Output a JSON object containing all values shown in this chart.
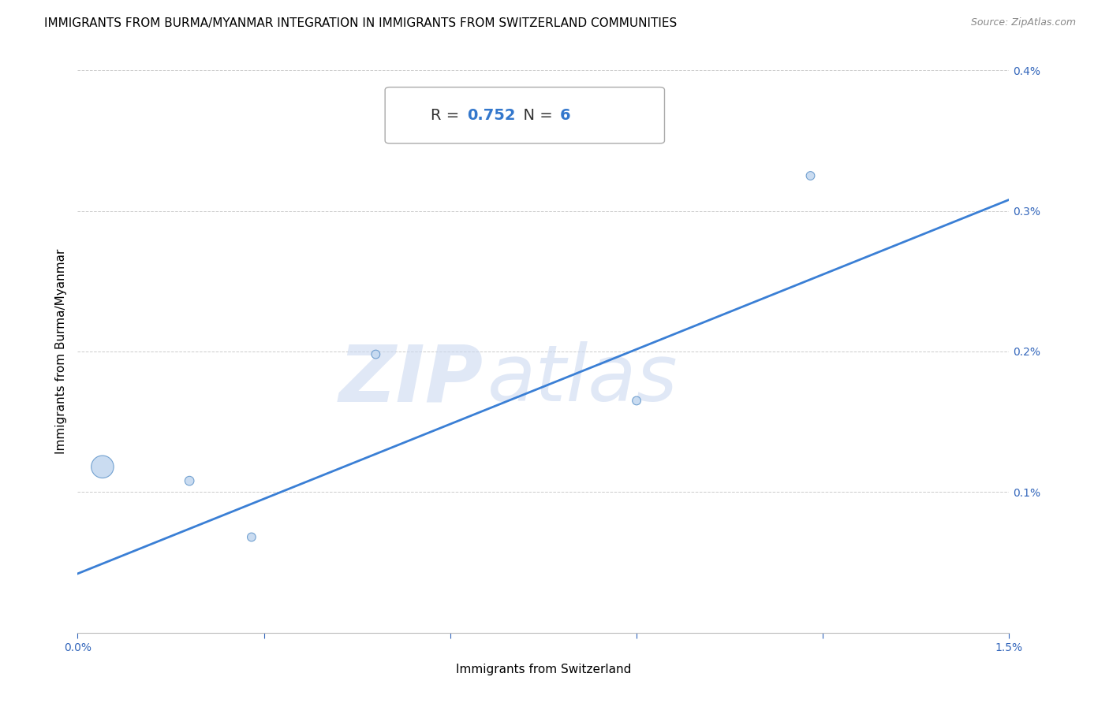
{
  "title": "IMMIGRANTS FROM BURMA/MYANMAR INTEGRATION IN IMMIGRANTS FROM SWITZERLAND COMMUNITIES",
  "source": "Source: ZipAtlas.com",
  "xlabel": "Immigrants from Switzerland",
  "ylabel": "Immigrants from Burma/Myanmar",
  "R": 0.752,
  "N": 6,
  "scatter_x": [
    0.0004,
    0.0018,
    0.0028,
    0.0048,
    0.009,
    0.0118
  ],
  "scatter_y": [
    0.00118,
    0.00108,
    0.00068,
    0.00198,
    0.00165,
    0.00325
  ],
  "scatter_sizes": [
    420,
    70,
    60,
    60,
    60,
    60
  ],
  "scatter_color": "#c5d9f0",
  "scatter_edge_color": "#6699cc",
  "line_color": "#3a7fd5",
  "line_x": [
    0.0,
    0.015
  ],
  "line_y": [
    0.00042,
    0.00308
  ],
  "xlim": [
    0.0,
    0.015
  ],
  "ylim": [
    0.0,
    0.004
  ],
  "xticks": [
    0.0,
    0.003,
    0.006,
    0.009,
    0.012,
    0.015
  ],
  "yticks": [
    0.0,
    0.001,
    0.002,
    0.003,
    0.004
  ],
  "watermark_zip": "ZIP",
  "watermark_atlas": "atlas",
  "title_fontsize": 11,
  "axis_label_fontsize": 11,
  "tick_fontsize": 10,
  "annotation_fontsize": 14
}
